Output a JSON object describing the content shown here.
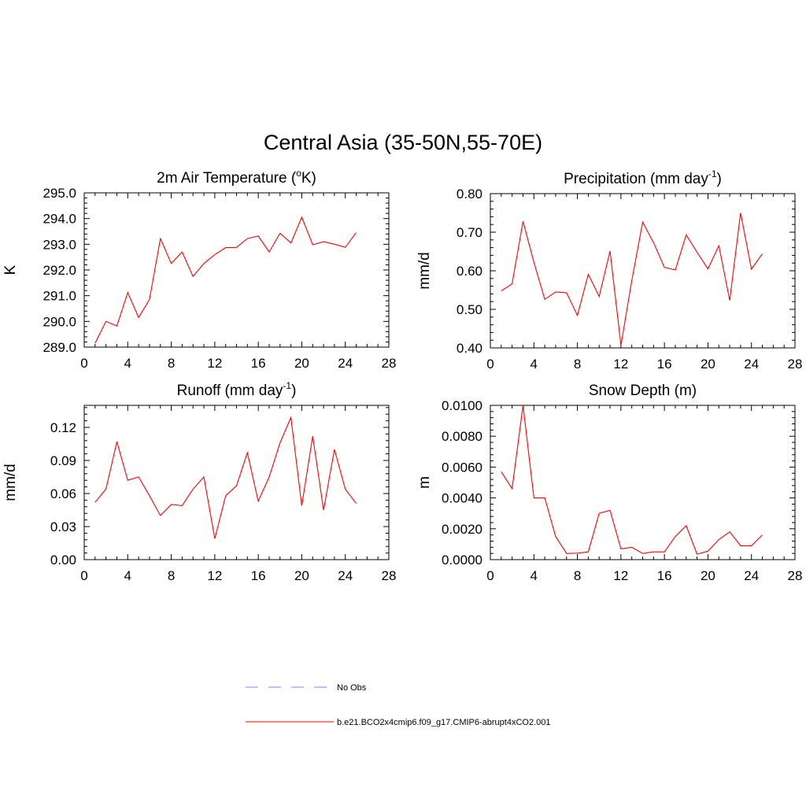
{
  "title": "Central Asia (35-50N,55-70E)",
  "colors": {
    "model": "#ff0000",
    "obs": "#9999ff",
    "axis": "#000000"
  },
  "legend": {
    "obs_label": "No Obs",
    "model_label": "b.e21.BCO2x4cmip6.f09_g17.CMIP6-abrupt4xCO2.001"
  },
  "chart_data": [
    {
      "type": "line",
      "title": {
        "pre": "2m Air Temperature (",
        "sup": "o",
        "post": "K)"
      },
      "ylabel": "K",
      "xlim": [
        0,
        28
      ],
      "xticks": [
        0,
        4,
        8,
        12,
        16,
        20,
        24,
        28
      ],
      "xticklabels": [
        "0",
        "4",
        "8",
        "12",
        "16",
        "20",
        "24",
        "28"
      ],
      "ylim": [
        289.0,
        295.0
      ],
      "yticks": [
        289.0,
        290.0,
        291.0,
        292.0,
        293.0,
        294.0,
        295.0
      ],
      "yticklabels": [
        "289.0",
        "290.0",
        "291.0",
        "292.0",
        "293.0",
        "294.0",
        "295.0"
      ],
      "series": [
        {
          "name": "b.e21.BCO2x4cmip6.f09_g17.CMIP6-abrupt4xCO2.001",
          "x": [
            1,
            2,
            3,
            4,
            5,
            6,
            7,
            8,
            9,
            10,
            11,
            12,
            13,
            14,
            15,
            16,
            17,
            18,
            19,
            20,
            21,
            22,
            23,
            24,
            25
          ],
          "values": [
            289.15,
            290.0,
            289.82,
            291.12,
            290.15,
            290.85,
            293.22,
            292.25,
            292.7,
            291.75,
            292.25,
            292.6,
            292.87,
            292.88,
            293.22,
            293.32,
            292.7,
            293.43,
            293.05,
            294.05,
            292.98,
            293.1,
            293.0,
            292.88,
            293.45
          ]
        }
      ]
    },
    {
      "type": "line",
      "title": {
        "pre": "Precipitation (mm day",
        "sup": "-1",
        "post": ")"
      },
      "ylabel": "mm/d",
      "xlim": [
        0,
        28
      ],
      "xticks": [
        0,
        4,
        8,
        12,
        16,
        20,
        24,
        28
      ],
      "xticklabels": [
        "0",
        "4",
        "8",
        "12",
        "16",
        "20",
        "24",
        "28"
      ],
      "ylim": [
        0.4,
        0.8
      ],
      "yticks": [
        0.4,
        0.5,
        0.6,
        0.7,
        0.8
      ],
      "yticklabels": [
        "0.40",
        "0.50",
        "0.60",
        "0.70",
        "0.80"
      ],
      "series": [
        {
          "name": "b.e21.BCO2x4cmip6.f09_g17.CMIP6-abrupt4xCO2.001",
          "x": [
            1,
            2,
            3,
            4,
            5,
            6,
            7,
            8,
            9,
            10,
            11,
            12,
            13,
            14,
            15,
            16,
            17,
            18,
            19,
            20,
            21,
            22,
            23,
            24,
            25
          ],
          "values": [
            0.548,
            0.566,
            0.728,
            0.622,
            0.526,
            0.545,
            0.543,
            0.484,
            0.591,
            0.533,
            0.651,
            0.407,
            0.575,
            0.726,
            0.673,
            0.609,
            0.602,
            0.693,
            0.648,
            0.605,
            0.665,
            0.523,
            0.75,
            0.604,
            0.644
          ]
        }
      ]
    },
    {
      "type": "line",
      "title": {
        "pre": "Runoff (mm day",
        "sup": "-1",
        "post": ")"
      },
      "ylabel": "mm/d",
      "xlim": [
        0,
        28
      ],
      "xticks": [
        0,
        4,
        8,
        12,
        16,
        20,
        24,
        28
      ],
      "xticklabels": [
        "0",
        "4",
        "8",
        "12",
        "16",
        "20",
        "24",
        "28"
      ],
      "ylim": [
        0.0,
        0.14
      ],
      "yticks": [
        0.0,
        0.03,
        0.06,
        0.09,
        0.12
      ],
      "yticklabels": [
        "0.00",
        "0.03",
        "0.06",
        "0.09",
        "0.12"
      ],
      "series": [
        {
          "name": "b.e21.BCO2x4cmip6.f09_g17.CMIP6-abrupt4xCO2.001",
          "x": [
            1,
            2,
            3,
            4,
            5,
            6,
            7,
            8,
            9,
            10,
            11,
            12,
            13,
            14,
            15,
            16,
            17,
            18,
            19,
            20,
            21,
            22,
            23,
            24,
            25
          ],
          "values": [
            0.052,
            0.064,
            0.107,
            0.072,
            0.075,
            0.058,
            0.04,
            0.05,
            0.049,
            0.064,
            0.075,
            0.019,
            0.058,
            0.067,
            0.097,
            0.053,
            0.075,
            0.106,
            0.129,
            0.049,
            0.112,
            0.045,
            0.1,
            0.064,
            0.051
          ]
        }
      ]
    },
    {
      "type": "line",
      "title": {
        "pre": "Snow Depth (m)",
        "sup": "",
        "post": ""
      },
      "ylabel": "m",
      "xlim": [
        0,
        28
      ],
      "xticks": [
        0,
        4,
        8,
        12,
        16,
        20,
        24,
        28
      ],
      "xticklabels": [
        "0",
        "4",
        "8",
        "12",
        "16",
        "20",
        "24",
        "28"
      ],
      "ylim": [
        0.0,
        0.01
      ],
      "yticks": [
        0.0,
        0.002,
        0.004,
        0.006,
        0.008,
        0.01
      ],
      "yticklabels": [
        "0.0000",
        "0.0020",
        "0.0040",
        "0.0060",
        "0.0080",
        "0.0100"
      ],
      "series": [
        {
          "name": "b.e21.BCO2x4cmip6.f09_g17.CMIP6-abrupt4xCO2.001",
          "x": [
            1,
            2,
            3,
            4,
            5,
            6,
            7,
            8,
            9,
            10,
            11,
            12,
            13,
            14,
            15,
            16,
            17,
            18,
            19,
            20,
            21,
            22,
            23,
            24,
            25
          ],
          "values": [
            0.0057,
            0.0046,
            0.01,
            0.004,
            0.004,
            0.0015,
            0.0004,
            0.00042,
            0.0005,
            0.003,
            0.0032,
            0.0007,
            0.0008,
            0.0004,
            0.0005,
            0.0005,
            0.0015,
            0.0022,
            0.00035,
            0.00055,
            0.0013,
            0.0018,
            0.0009,
            0.0009,
            0.0016
          ]
        }
      ]
    }
  ]
}
